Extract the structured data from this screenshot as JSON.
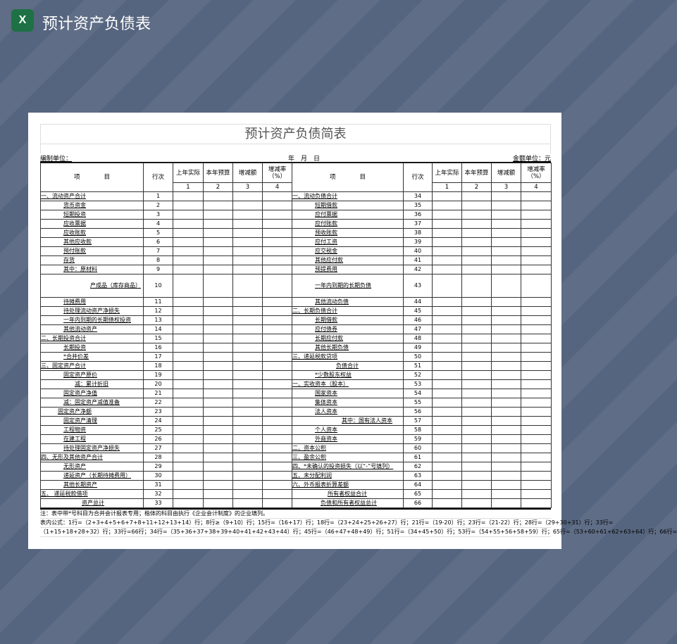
{
  "app": {
    "title": "预计资产负债表",
    "icon": "excel-icon"
  },
  "sheet": {
    "title": "预计资产负债简表",
    "unit_label": "编制单位：",
    "date_label": "年　月　日",
    "currency_label": "金额单位：元",
    "headers": {
      "item": "项　　　　目",
      "row_no": "行次",
      "last_year": "上年实际",
      "this_year": "本年预算",
      "change": "增减额",
      "rate": "增减率（%）",
      "nums": [
        "1",
        "2",
        "3",
        "4"
      ]
    },
    "rows": [
      {
        "l": "一、流动资产合计",
        "ln": "1",
        "r": "一、流动负债合计",
        "rn": "34"
      },
      {
        "l": "货币资金",
        "ln": "2",
        "r": "短期借款",
        "rn": "35"
      },
      {
        "l": "短期投资",
        "ln": "3",
        "r": "应付票据",
        "rn": "36"
      },
      {
        "l": "应收票据",
        "ln": "4",
        "r": "应付账款",
        "rn": "37"
      },
      {
        "l": "应收账款",
        "ln": "5",
        "r": "预收账款",
        "rn": "38"
      },
      {
        "l": "其他应收款",
        "ln": "6",
        "r": "应付工资",
        "rn": "39"
      },
      {
        "l": "预付账款",
        "ln": "7",
        "r": "应交税金",
        "rn": "40"
      },
      {
        "l": "存货",
        "ln": "8",
        "r": "其他应付款",
        "rn": "41"
      },
      {
        "l": "其中：原材料",
        "ln": "9",
        "r": "预提费用",
        "rn": "42"
      },
      {
        "l": "产成品（库存商品）",
        "ln": "10",
        "r": "一年内到期的长期负债",
        "rn": "43"
      },
      {
        "l": "待摊费用",
        "ln": "11",
        "r": "其他流动负债",
        "rn": "44"
      },
      {
        "l": "待处理流动资产净损失",
        "ln": "12",
        "r": "二、长期负债合计",
        "rn": "45"
      },
      {
        "l": "一年内到期的长期债权投资",
        "ln": "13",
        "r": "长期借款",
        "rn": "46"
      },
      {
        "l": "其他流动资产",
        "ln": "14",
        "r": "应付债券",
        "rn": "47"
      },
      {
        "l": "二、长期投资合计",
        "ln": "15",
        "r": "长期应付款",
        "rn": "48"
      },
      {
        "l": "长期投资",
        "ln": "16",
        "r": "其他长期负债",
        "rn": "49"
      },
      {
        "l": "*合并价差",
        "ln": "17",
        "r": "三、递延税款贷项",
        "rn": "50"
      },
      {
        "l": "三、固定资产合计",
        "ln": "18",
        "r": "负债合计",
        "rn": "51"
      },
      {
        "l": "固定资产原价",
        "ln": "19",
        "r": "*少数股东权益",
        "rn": "52"
      },
      {
        "l": "减：累计折旧",
        "ln": "20",
        "r": "一、实收资本（股本）",
        "rn": "53"
      },
      {
        "l": "固定资产净值",
        "ln": "21",
        "r": "国家资本",
        "rn": "54"
      },
      {
        "l": "减：固定资产减值准备",
        "ln": "22",
        "r": "集体资本",
        "rn": "55"
      },
      {
        "l": "固定资产净额",
        "ln": "23",
        "r": "法人资本",
        "rn": "56"
      },
      {
        "l": "固定资产清理",
        "ln": "24",
        "r": "其中：国有法人资本",
        "rn": "57"
      },
      {
        "l": "工程物资",
        "ln": "25",
        "r": "个人资本",
        "rn": "58"
      },
      {
        "l": "在建工程",
        "ln": "26",
        "r": "外商资本",
        "rn": "59"
      },
      {
        "l": "待处理固定资产净损失",
        "ln": "27",
        "r": "二、资本公积",
        "rn": "60"
      },
      {
        "l": "四、无形及其他资产合计",
        "ln": "28",
        "r": "三、盈余公积",
        "rn": "61"
      },
      {
        "l": "无形资产",
        "ln": "29",
        "r": "四、*未确认的投资损失（以“-”号填列）",
        "rn": "62"
      },
      {
        "l": "递延资产（长期待摊费用）",
        "ln": "30",
        "r": "五、未分配利润",
        "rn": "63"
      },
      {
        "l": "其他长期资产",
        "ln": "31",
        "r": "六、外币报表折算差额",
        "rn": "64"
      },
      {
        "l": "五、 递延税款借项",
        "ln": "32",
        "r": "所有者权益合计",
        "rn": "65"
      },
      {
        "l": "资产总计",
        "ln": "33",
        "r": "负债和所有者权益总计",
        "rn": "66"
      }
    ],
    "notes": [
      "注：表中带*号科目为合并会计报表专用；楷体的科目由执行《企业会计制度》的企业填列。",
      "表内公式：1行=（2+3+4+5+6+7+8+11+12+13+14）行；8行≥（9+10）行；15行=（16+17）行；18行=（23+24+25+26+27）行；21行=（19-20）行；23行=（21-22）行；28行=（29+30+31）行；33行=",
      "（1+15+18+28+32）行；33行=66行；34行=（35+36+37+38+39+40+41+42+43+44）行；45行=（46+47+48+49）行；51行=（34+45+50）行；53行=（54+55+56+58+59）行；65行=（53+60+61+62+63+64）行；66行="
    ]
  }
}
